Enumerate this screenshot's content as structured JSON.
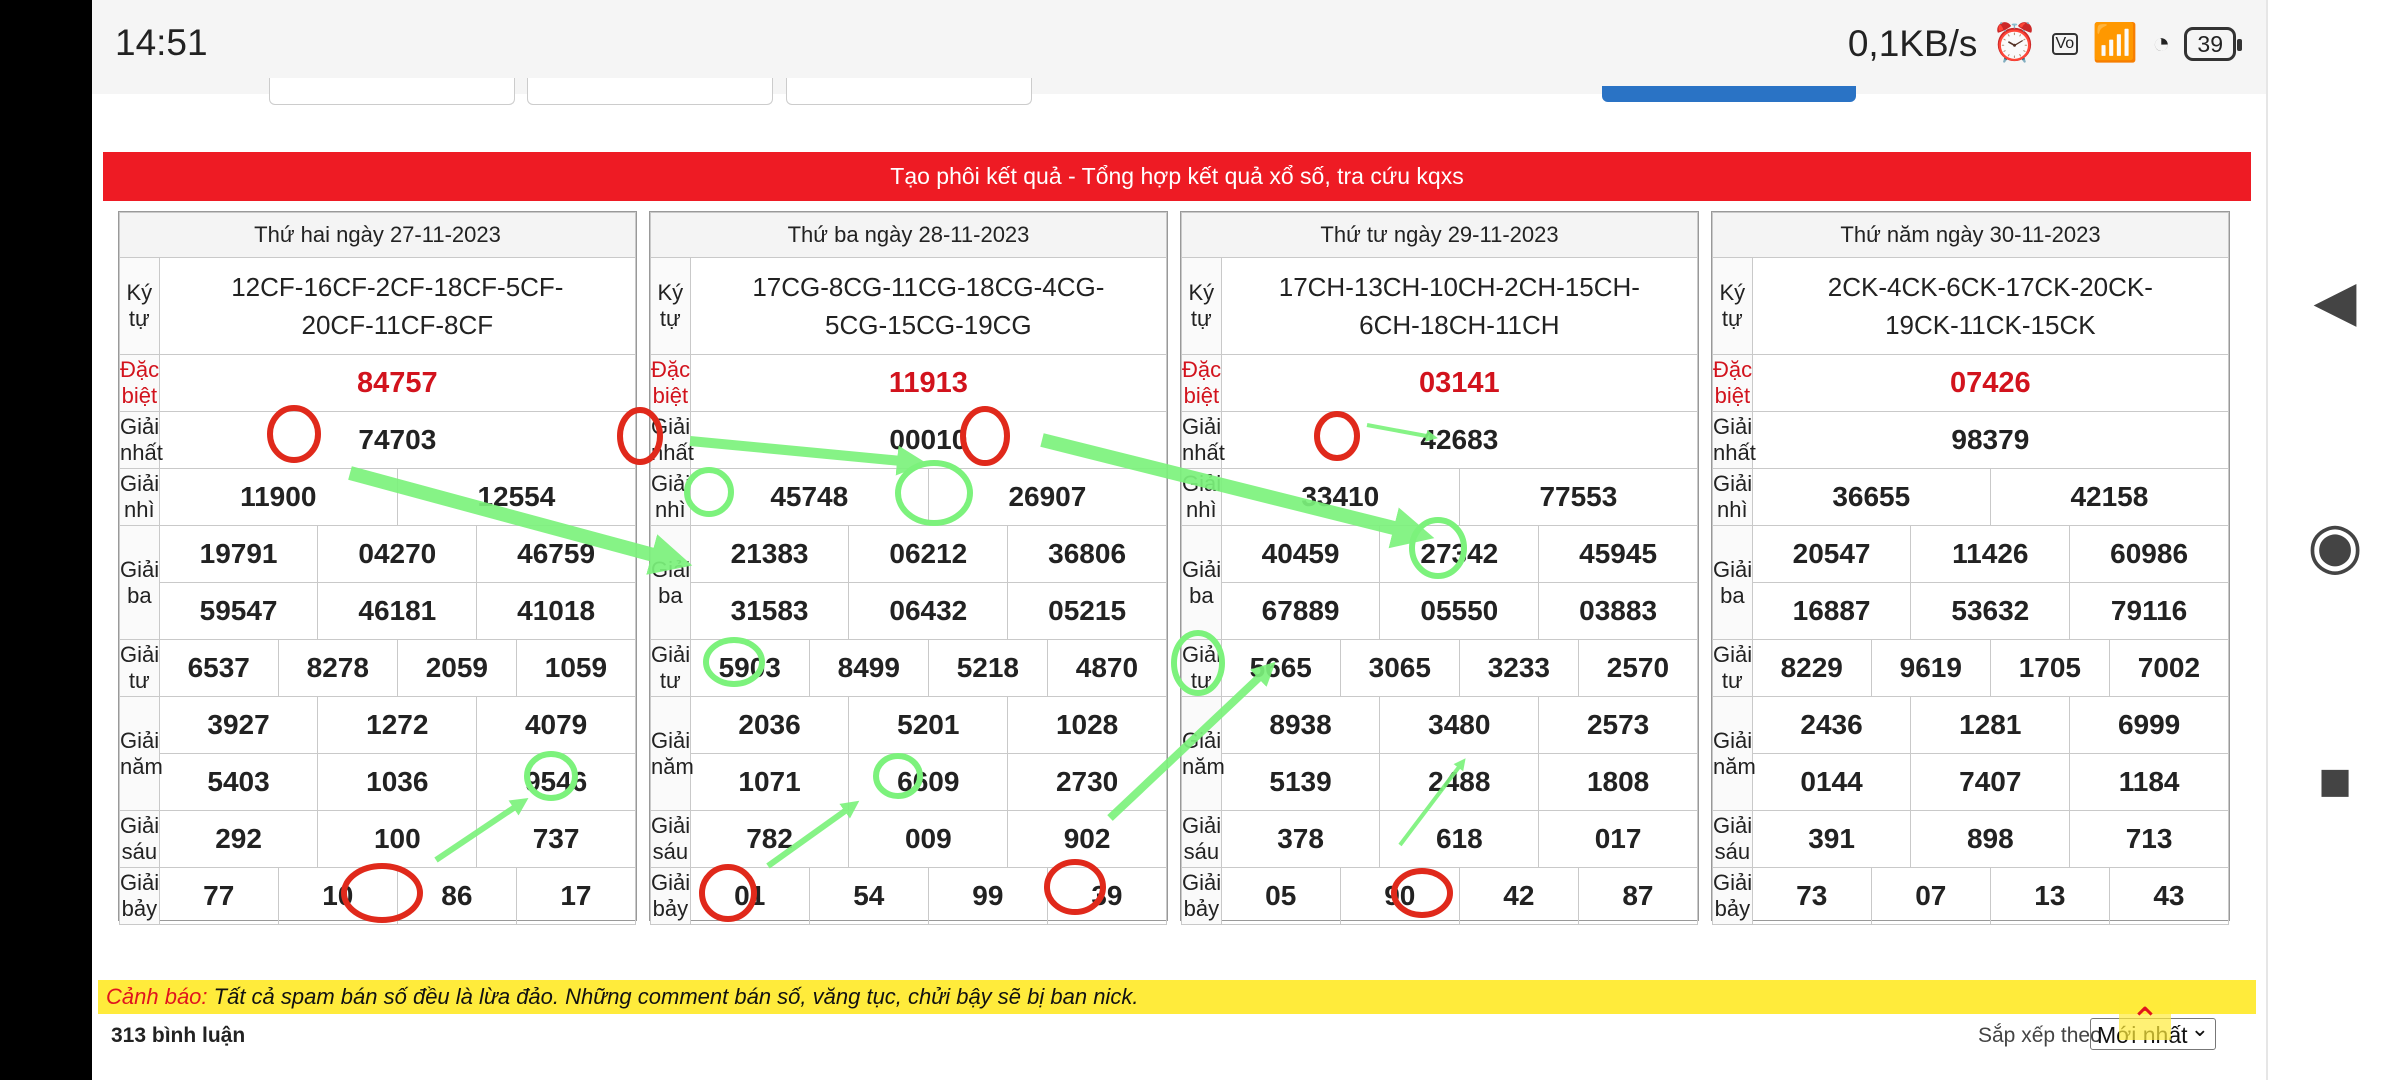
{
  "status": {
    "time": "14:51",
    "speed": "0,1KB/s",
    "battery": "39"
  },
  "banner": {
    "text": "Tạo phôi kết quả - Tổng hợp kết quả xổ số, tra cứu kqxs"
  },
  "labels": {
    "ky_tu": "Ký tự",
    "dac_biet": "Đặc biệt",
    "giai_nhat": "Giải nhất",
    "giai_nhi": "Giải nhì",
    "giai_ba": "Giải ba",
    "giai_tu": "Giải tư",
    "giai_nam": "Giải năm",
    "giai_sau": "Giải sáu",
    "giai_bay": "Giải bảy"
  },
  "days": [
    {
      "title": "Thứ hai ngày 27-11-2023",
      "kytu": [
        "12CF-16CF-2CF-18CF-5CF-",
        "20CF-11CF-8CF"
      ],
      "db": "84757",
      "g1": "74703",
      "g2": [
        "11900",
        "12554"
      ],
      "g3": [
        "19791",
        "04270",
        "46759",
        "59547",
        "46181",
        "41018"
      ],
      "g4": [
        "6537",
        "8278",
        "2059",
        "1059"
      ],
      "g5": [
        "3927",
        "1272",
        "4079",
        "5403",
        "1036",
        "9546"
      ],
      "g6": [
        "292",
        "100",
        "737"
      ],
      "g7": [
        "77",
        "10",
        "86",
        "17"
      ]
    },
    {
      "title": "Thứ ba ngày 28-11-2023",
      "kytu": [
        "17CG-8CG-11CG-18CG-4CG-",
        "5CG-15CG-19CG"
      ],
      "db": "11913",
      "g1": "00010",
      "g2": [
        "45748",
        "26907"
      ],
      "g3": [
        "21383",
        "06212",
        "36806",
        "31583",
        "06432",
        "05215"
      ],
      "g4": [
        "5903",
        "8499",
        "5218",
        "4870"
      ],
      "g5": [
        "2036",
        "5201",
        "1028",
        "1071",
        "6609",
        "2730"
      ],
      "g6": [
        "782",
        "009",
        "902"
      ],
      "g7": [
        "01",
        "54",
        "99",
        "39"
      ]
    },
    {
      "title": "Thứ tư ngày 29-11-2023",
      "kytu": [
        "17CH-13CH-10CH-2CH-15CH-",
        "6CH-18CH-11CH"
      ],
      "db": "03141",
      "g1": "42683",
      "g2": [
        "33410",
        "77553"
      ],
      "g3": [
        "40459",
        "27342",
        "45945",
        "67889",
        "05550",
        "03883"
      ],
      "g4": [
        "5665",
        "3065",
        "3233",
        "2570"
      ],
      "g5": [
        "8938",
        "3480",
        "2573",
        "5139",
        "2488",
        "1808"
      ],
      "g6": [
        "378",
        "618",
        "017"
      ],
      "g7": [
        "05",
        "90",
        "42",
        "87"
      ]
    },
    {
      "title": "Thứ năm ngày 30-11-2023",
      "kytu": [
        "2CK-4CK-6CK-17CK-20CK-",
        "19CK-11CK-15CK"
      ],
      "db": "07426",
      "g1": "98379",
      "g2": [
        "36655",
        "42158"
      ],
      "g3": [
        "20547",
        "11426",
        "60986",
        "16887",
        "53632",
        "79116"
      ],
      "g4": [
        "8229",
        "9619",
        "1705",
        "7002"
      ],
      "g5": [
        "2436",
        "1281",
        "6999",
        "0144",
        "7407",
        "1184"
      ],
      "g6": [
        "391",
        "898",
        "713"
      ],
      "g7": [
        "73",
        "07",
        "13",
        "43"
      ]
    }
  ],
  "warning": {
    "prefix": "Cảnh báo:",
    "text": " Tất cả spam bán số đều là lừa đảo. Những comment bán số, văng tục, chửi bậy sẽ bị ban nick."
  },
  "comments": {
    "count": "313 bình luận",
    "sort_label": "Sắp xếp theo",
    "sort_value": "Mới nhất"
  },
  "colors": {
    "red": "#ee1b24",
    "arrow_green": "#7cf27c",
    "circle_red": "#e0291b",
    "warn_yellow": "#ffeb3b"
  }
}
